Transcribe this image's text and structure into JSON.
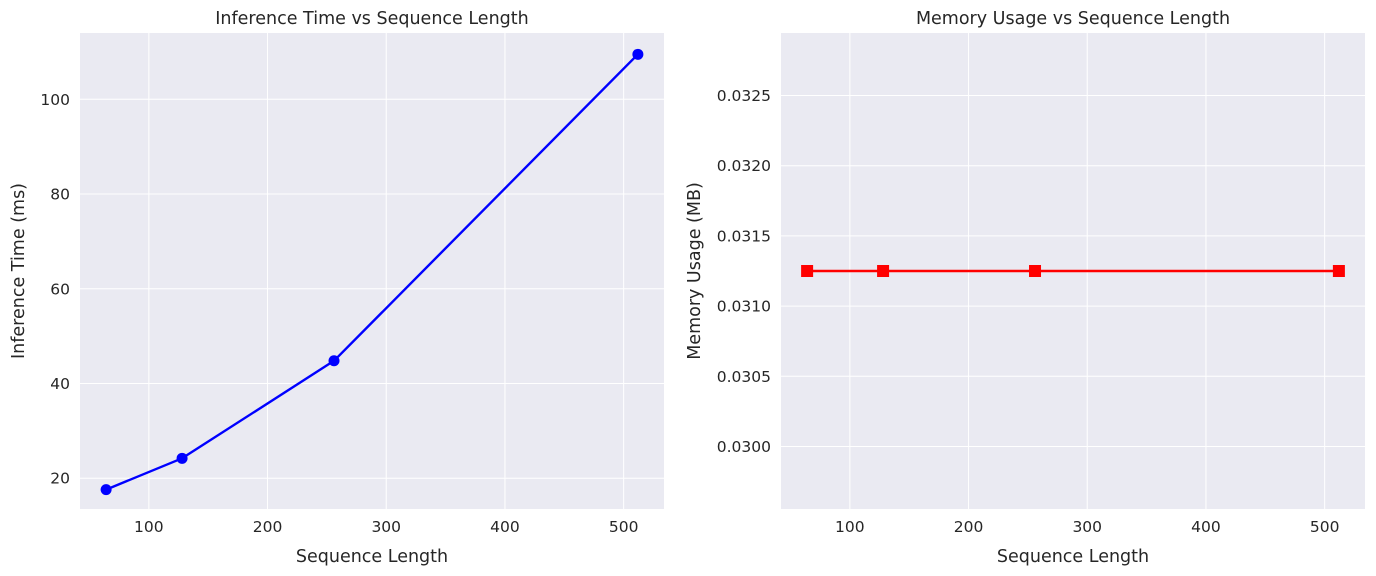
{
  "chart_data": [
    {
      "type": "line",
      "title": "Inference Time vs Sequence Length",
      "xlabel": "Sequence Length",
      "ylabel": "Inference Time (ms)",
      "xlim": [
        42,
        534
      ],
      "ylim": [
        13.5,
        114
      ],
      "xticks": [
        100,
        200,
        300,
        400,
        500
      ],
      "yticks": [
        20,
        40,
        60,
        80,
        100
      ],
      "ytick_decimals": 0,
      "grid": true,
      "series": [
        {
          "color": "#0000ff",
          "marker": "circle",
          "x": [
            64,
            128,
            256,
            512
          ],
          "y": [
            17.6,
            24.2,
            44.8,
            109.5
          ]
        }
      ]
    },
    {
      "type": "line",
      "title": "Memory Usage vs Sequence Length",
      "xlabel": "Sequence Length",
      "ylabel": "Memory Usage (MB)",
      "xlim": [
        42,
        534
      ],
      "ylim": [
        0.029555,
        0.032945
      ],
      "xticks": [
        100,
        200,
        300,
        400,
        500
      ],
      "yticks": [
        0.03,
        0.0305,
        0.031,
        0.0315,
        0.032,
        0.0325
      ],
      "ytick_decimals": 4,
      "grid": true,
      "series": [
        {
          "color": "#ff0000",
          "marker": "square",
          "x": [
            64,
            128,
            256,
            512
          ],
          "y": [
            0.03125,
            0.03125,
            0.03125,
            0.03125
          ]
        }
      ]
    }
  ]
}
